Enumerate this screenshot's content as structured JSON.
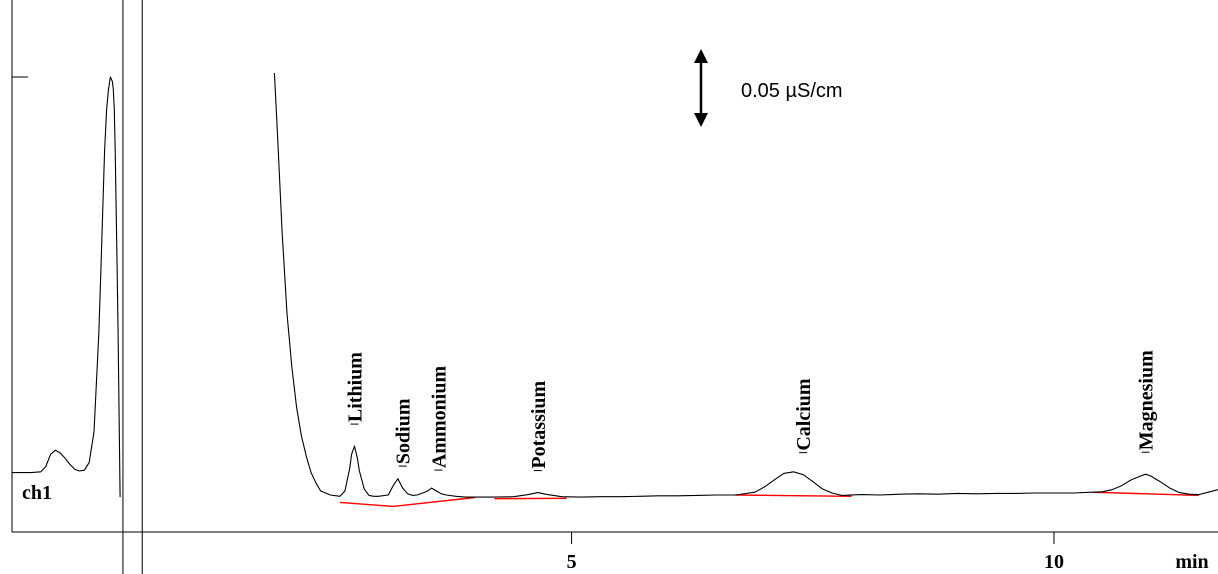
{
  "chart_data": {
    "type": "line",
    "title": "",
    "xlabel": "min",
    "ylabel": "",
    "xlim": [
      -0.8,
      11.7
    ],
    "ylim": [
      -0.012,
      0.104
    ],
    "x_ticks": [
      {
        "value": 5,
        "label": "5"
      },
      {
        "value": 10,
        "label": "10"
      }
    ],
    "channel_label": "ch1",
    "scale_bar": {
      "label": "0.05 µS/cm",
      "value": 0.05
    },
    "grid": false,
    "legend": "none",
    "trace_color": "#000000",
    "baseline_color": "#ff0000",
    "markers": [
      0.35,
      0.55
    ],
    "peaks": [
      {
        "name": "Lithium",
        "rt": 2.75
      },
      {
        "name": "Sodium",
        "rt": 3.25
      },
      {
        "name": "Ammonium",
        "rt": 3.62
      },
      {
        "name": "Potassium",
        "rt": 4.65
      },
      {
        "name": "Calcium",
        "rt": 7.4
      },
      {
        "name": "Magnesium",
        "rt": 10.95
      }
    ],
    "baselines": [
      {
        "x": [
          2.6,
          3.15,
          4.0
        ],
        "y": [
          -0.0013,
          -0.0023,
          -0.0001
        ]
      },
      {
        "x": [
          4.2,
          4.95
        ],
        "y": [
          -0.0004,
          -0.0003
        ]
      },
      {
        "x": [
          6.7,
          7.9
        ],
        "y": [
          0.0005,
          0.0002
        ]
      },
      {
        "x": [
          10.4,
          11.5
        ],
        "y": [
          0.0012,
          0.0004
        ]
      }
    ],
    "series": [
      {
        "x": [
          -0.8,
          -0.6,
          -0.5,
          -0.45,
          -0.4,
          -0.35,
          -0.3,
          -0.25,
          -0.2,
          -0.15,
          -0.1,
          -0.05,
          0.0,
          0.05,
          0.1,
          0.12,
          0.14,
          0.16,
          0.18,
          0.2,
          0.22,
          0.24,
          0.25,
          0.26,
          0.27,
          0.28,
          0.29,
          0.3,
          0.31,
          0.32,
          1.92,
          1.95,
          2.0,
          2.05,
          2.1,
          2.15,
          2.2,
          2.25,
          2.3,
          2.35,
          2.4,
          2.5,
          2.6,
          2.65,
          2.7,
          2.72,
          2.75,
          2.78,
          2.8,
          2.85,
          2.9,
          2.95,
          3.0,
          3.1,
          3.15,
          3.2,
          3.25,
          3.3,
          3.35,
          3.4,
          3.5,
          3.55,
          3.6,
          3.65,
          3.7,
          3.8,
          3.9,
          4.0,
          4.2,
          4.4,
          4.55,
          4.65,
          4.75,
          4.9,
          5.1,
          5.3,
          5.5,
          5.7,
          5.9,
          6.1,
          6.3,
          6.5,
          6.7,
          6.9,
          7.0,
          7.1,
          7.2,
          7.3,
          7.4,
          7.5,
          7.6,
          7.7,
          7.8,
          8.0,
          8.2,
          8.4,
          8.6,
          8.8,
          9.0,
          9.2,
          9.4,
          9.6,
          9.8,
          10.0,
          10.2,
          10.4,
          10.5,
          10.6,
          10.7,
          10.8,
          10.9,
          10.95,
          11.0,
          11.1,
          11.2,
          11.3,
          11.4,
          11.5,
          11.6,
          11.7
        ],
        "y": [
          0.006,
          0.006,
          0.0062,
          0.0075,
          0.0105,
          0.0115,
          0.0108,
          0.0095,
          0.008,
          0.0068,
          0.0064,
          0.0066,
          0.0085,
          0.016,
          0.04,
          0.055,
          0.07,
          0.085,
          0.095,
          0.1,
          0.103,
          0.102,
          0.1,
          0.095,
          0.085,
          0.07,
          0.055,
          0.04,
          0.02,
          0.0,
          0.104,
          0.09,
          0.065,
          0.045,
          0.032,
          0.022,
          0.015,
          0.01,
          0.006,
          0.0035,
          0.0015,
          0.0005,
          0.0002,
          0.0015,
          0.007,
          0.0105,
          0.0125,
          0.0095,
          0.0065,
          0.002,
          0.0004,
          0.0002,
          0.0002,
          0.0005,
          0.0028,
          0.0045,
          0.0022,
          0.0008,
          0.0004,
          0.0005,
          0.0014,
          0.0022,
          0.0015,
          0.0008,
          0.0005,
          0.0002,
          0.0,
          0.0,
          0.0,
          0.0001,
          0.0006,
          0.0011,
          0.0006,
          0.0001,
          0.0,
          0.0001,
          0.0001,
          0.0002,
          0.0003,
          0.0003,
          0.0004,
          0.0005,
          0.0005,
          0.0012,
          0.0025,
          0.0042,
          0.0058,
          0.0062,
          0.0055,
          0.0038,
          0.002,
          0.001,
          0.0004,
          0.0006,
          0.0005,
          0.0007,
          0.0008,
          0.0007,
          0.0009,
          0.0008,
          0.0009,
          0.0009,
          0.001,
          0.001,
          0.001,
          0.0012,
          0.0013,
          0.0018,
          0.0028,
          0.0042,
          0.0052,
          0.0056,
          0.0052,
          0.0038,
          0.0022,
          0.0011,
          0.0007,
          0.0006,
          0.0012,
          0.0018
        ]
      }
    ]
  }
}
